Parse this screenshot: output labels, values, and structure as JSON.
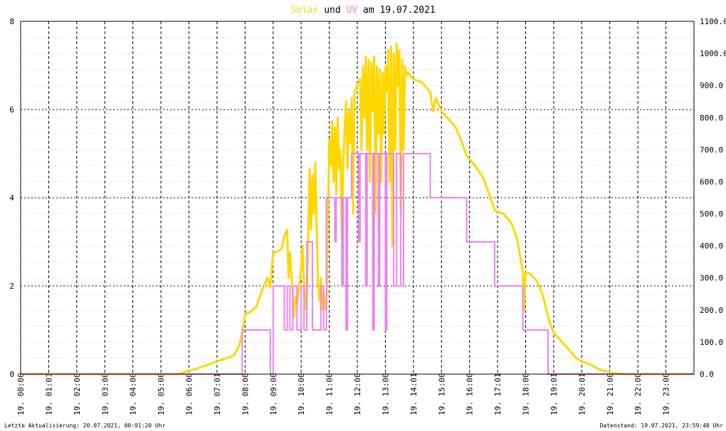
{
  "chart_data": {
    "type": "line",
    "title": {
      "solar_word": "Solar",
      "und": "und",
      "uv_word": "UV",
      "am": "am",
      "date": "19.07.2021",
      "solar_color": "#ffd700",
      "uv_color": "#ee82ee"
    },
    "left_axis": {
      "min": 0,
      "max": 8,
      "ticks": [
        0,
        2,
        4,
        6,
        8
      ]
    },
    "right_axis": {
      "min": 0,
      "max": 1100,
      "ticks": [
        "0.0",
        "100.0",
        "200.0",
        "300.0",
        "400.0",
        "500.0",
        "600.0",
        "700.0",
        "800.0",
        "900.0",
        "1000.0",
        "1100.0"
      ]
    },
    "x_axis": {
      "min_hours": 0,
      "max_hours": 24,
      "tick_hours": [
        0,
        1,
        2,
        3,
        4,
        5,
        6,
        7,
        8,
        9,
        10,
        11,
        12,
        13,
        14,
        15,
        16,
        17,
        18,
        19,
        20,
        21,
        22,
        23
      ],
      "tick_labels": [
        "19. 00:00",
        "19. 01:01",
        "19. 02:00",
        "19. 03:00",
        "19. 04:00",
        "19. 05:00",
        "19. 06:00",
        "19. 07:01",
        "19. 08:00",
        "19. 09:00",
        "19. 10:00",
        "19. 11:00",
        "19. 12:00",
        "19. 13:00",
        "19. 14:01",
        "19. 15:00",
        "19. 16:00",
        "19. 17:01",
        "19. 18:00",
        "19. 19:01",
        "19. 20:01",
        "19. 21:00",
        "19. 22:00",
        "19. 23:00"
      ]
    },
    "grid": true,
    "series": [
      {
        "axis": "right",
        "color": "#ffd700",
        "points": [
          [
            0,
            0
          ],
          [
            5.6,
            0
          ],
          [
            5.9,
            8
          ],
          [
            6.3,
            18
          ],
          [
            6.7,
            30
          ],
          [
            7.0,
            40
          ],
          [
            7.3,
            48
          ],
          [
            7.6,
            58
          ],
          [
            7.8,
            90
          ],
          [
            7.9,
            130
          ],
          [
            8.0,
            185
          ],
          [
            8.2,
            195
          ],
          [
            8.4,
            210
          ],
          [
            8.6,
            260
          ],
          [
            8.8,
            300
          ],
          [
            8.9,
            270
          ],
          [
            9.0,
            380
          ],
          [
            9.1,
            380
          ],
          [
            9.3,
            390
          ],
          [
            9.4,
            430
          ],
          [
            9.5,
            450
          ],
          [
            9.55,
            300
          ],
          [
            9.6,
            380
          ],
          [
            9.7,
            250
          ],
          [
            9.75,
            180
          ],
          [
            9.8,
            240
          ],
          [
            9.85,
            220
          ],
          [
            9.9,
            250
          ],
          [
            10.0,
            330
          ],
          [
            10.05,
            400
          ],
          [
            10.1,
            280
          ],
          [
            10.15,
            200
          ],
          [
            10.2,
            240
          ],
          [
            10.3,
            640
          ],
          [
            10.35,
            450
          ],
          [
            10.4,
            620
          ],
          [
            10.45,
            500
          ],
          [
            10.5,
            660
          ],
          [
            10.55,
            480
          ],
          [
            10.6,
            280
          ],
          [
            10.65,
            230
          ],
          [
            10.7,
            300
          ],
          [
            10.75,
            200
          ],
          [
            10.8,
            250
          ],
          [
            10.85,
            210
          ],
          [
            10.9,
            200
          ],
          [
            11.0,
            730
          ],
          [
            11.05,
            650
          ],
          [
            11.1,
            790
          ],
          [
            11.15,
            600
          ],
          [
            11.2,
            770
          ],
          [
            11.25,
            560
          ],
          [
            11.3,
            800
          ],
          [
            11.35,
            640
          ],
          [
            11.4,
            700
          ],
          [
            11.45,
            420
          ],
          [
            11.5,
            660
          ],
          [
            11.55,
            770
          ],
          [
            11.6,
            850
          ],
          [
            11.65,
            640
          ],
          [
            11.7,
            820
          ],
          [
            11.75,
            720
          ],
          [
            11.8,
            860
          ],
          [
            11.85,
            500
          ],
          [
            11.9,
            880
          ],
          [
            12.0,
            900
          ],
          [
            12.1,
            920
          ],
          [
            12.15,
            700
          ],
          [
            12.2,
            960
          ],
          [
            12.25,
            800
          ],
          [
            12.3,
            990
          ],
          [
            12.35,
            700
          ],
          [
            12.4,
            980
          ],
          [
            12.45,
            600
          ],
          [
            12.5,
            970
          ],
          [
            12.55,
            820
          ],
          [
            12.6,
            990
          ],
          [
            12.65,
            500
          ],
          [
            12.7,
            960
          ],
          [
            12.75,
            750
          ],
          [
            12.8,
            950
          ],
          [
            12.85,
            600
          ],
          [
            12.9,
            940
          ],
          [
            12.95,
            750
          ],
          [
            13.0,
            960
          ],
          [
            13.05,
            880
          ],
          [
            13.1,
            1010
          ],
          [
            13.15,
            600
          ],
          [
            13.2,
            1020
          ],
          [
            13.25,
            400
          ],
          [
            13.3,
            1000
          ],
          [
            13.35,
            700
          ],
          [
            13.4,
            1030
          ],
          [
            13.45,
            900
          ],
          [
            13.5,
            1010
          ],
          [
            13.55,
            500
          ],
          [
            13.6,
            980
          ],
          [
            13.65,
            700
          ],
          [
            13.7,
            960
          ],
          [
            13.75,
            930
          ],
          [
            13.8,
            940
          ],
          [
            14.0,
            920
          ],
          [
            14.3,
            910
          ],
          [
            14.6,
            880
          ],
          [
            14.7,
            820
          ],
          [
            14.8,
            860
          ],
          [
            15.0,
            820
          ],
          [
            15.2,
            800
          ],
          [
            15.5,
            770
          ],
          [
            15.7,
            730
          ],
          [
            15.9,
            680
          ],
          [
            16.2,
            650
          ],
          [
            16.5,
            610
          ],
          [
            16.7,
            560
          ],
          [
            16.9,
            510
          ],
          [
            17.2,
            500
          ],
          [
            17.5,
            470
          ],
          [
            17.7,
            420
          ],
          [
            17.8,
            370
          ],
          [
            17.9,
            320
          ],
          [
            17.95,
            200
          ],
          [
            18.0,
            320
          ],
          [
            18.2,
            310
          ],
          [
            18.4,
            290
          ],
          [
            18.6,
            250
          ],
          [
            18.8,
            180
          ],
          [
            18.9,
            150
          ],
          [
            19.0,
            130
          ],
          [
            19.2,
            110
          ],
          [
            19.4,
            90
          ],
          [
            19.6,
            70
          ],
          [
            19.8,
            50
          ],
          [
            20.0,
            40
          ],
          [
            20.3,
            30
          ],
          [
            20.6,
            15
          ],
          [
            20.9,
            8
          ],
          [
            21.1,
            4
          ],
          [
            21.3,
            2
          ],
          [
            21.5,
            0
          ],
          [
            24,
            0
          ]
        ]
      },
      {
        "axis": "left",
        "color": "#ee82ee",
        "points": [
          [
            0,
            0
          ],
          [
            7.9,
            0
          ],
          [
            7.9,
            1
          ],
          [
            8.9,
            1
          ],
          [
            8.9,
            0
          ],
          [
            9.0,
            0
          ],
          [
            9.0,
            2
          ],
          [
            9.4,
            2
          ],
          [
            9.4,
            1
          ],
          [
            9.5,
            1
          ],
          [
            9.5,
            2
          ],
          [
            9.6,
            2
          ],
          [
            9.6,
            1
          ],
          [
            9.7,
            1
          ],
          [
            9.7,
            2
          ],
          [
            9.85,
            2
          ],
          [
            9.85,
            1
          ],
          [
            10.0,
            1
          ],
          [
            10.0,
            2
          ],
          [
            10.1,
            2
          ],
          [
            10.1,
            1
          ],
          [
            10.2,
            1
          ],
          [
            10.2,
            3
          ],
          [
            10.4,
            3
          ],
          [
            10.4,
            1
          ],
          [
            10.7,
            1
          ],
          [
            10.7,
            2
          ],
          [
            10.8,
            2
          ],
          [
            10.8,
            1
          ],
          [
            10.9,
            1
          ],
          [
            10.9,
            4
          ],
          [
            11.2,
            4
          ],
          [
            11.2,
            3
          ],
          [
            11.25,
            3
          ],
          [
            11.25,
            4
          ],
          [
            11.45,
            4
          ],
          [
            11.45,
            2
          ],
          [
            11.5,
            2
          ],
          [
            11.5,
            4
          ],
          [
            11.6,
            4
          ],
          [
            11.6,
            1
          ],
          [
            11.65,
            1
          ],
          [
            11.65,
            4
          ],
          [
            11.8,
            4
          ],
          [
            11.8,
            5
          ],
          [
            12.05,
            5
          ],
          [
            12.05,
            3
          ],
          [
            12.1,
            3
          ],
          [
            12.1,
            5
          ],
          [
            12.3,
            5
          ],
          [
            12.3,
            2
          ],
          [
            12.35,
            2
          ],
          [
            12.35,
            5
          ],
          [
            12.55,
            5
          ],
          [
            12.55,
            1
          ],
          [
            12.6,
            1
          ],
          [
            12.6,
            5
          ],
          [
            12.75,
            5
          ],
          [
            12.75,
            2
          ],
          [
            12.8,
            2
          ],
          [
            12.8,
            5
          ],
          [
            13.0,
            5
          ],
          [
            13.0,
            1
          ],
          [
            13.05,
            1
          ],
          [
            13.05,
            5
          ],
          [
            13.3,
            5
          ],
          [
            13.3,
            2
          ],
          [
            13.4,
            2
          ],
          [
            13.4,
            5
          ],
          [
            13.55,
            5
          ],
          [
            13.55,
            2
          ],
          [
            13.65,
            2
          ],
          [
            13.65,
            5
          ],
          [
            14.6,
            5
          ],
          [
            14.6,
            4
          ],
          [
            15.9,
            4
          ],
          [
            15.9,
            3
          ],
          [
            16.9,
            3
          ],
          [
            16.9,
            2
          ],
          [
            17.9,
            2
          ],
          [
            17.9,
            1
          ],
          [
            18.8,
            1
          ],
          [
            18.8,
            0
          ],
          [
            24,
            0
          ]
        ]
      }
    ],
    "footer": {
      "left": "Letzte Aktualisierung: 20.07.2021, 00:01:20 Uhr",
      "right": "Datenstand: 19.07.2021, 23:59:48 Uhr"
    }
  }
}
